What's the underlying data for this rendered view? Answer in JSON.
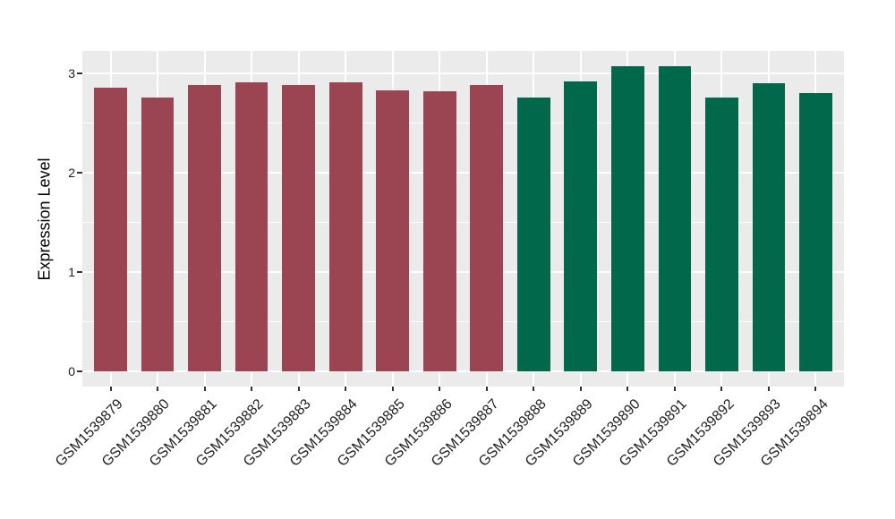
{
  "chart_data": {
    "type": "bar",
    "title": "",
    "xlabel": "",
    "ylabel": "Expression Level",
    "categories": [
      "GSM1539879",
      "GSM1539880",
      "GSM1539881",
      "GSM1539882",
      "GSM1539883",
      "GSM1539884",
      "GSM1539885",
      "GSM1539886",
      "GSM1539887",
      "GSM1539888",
      "GSM1539889",
      "GSM1539890",
      "GSM1539891",
      "GSM1539892",
      "GSM1539893",
      "GSM1539894"
    ],
    "values": [
      2.85,
      2.75,
      2.88,
      2.91,
      2.88,
      2.91,
      2.83,
      2.82,
      2.88,
      2.75,
      2.92,
      3.07,
      3.07,
      2.75,
      2.9,
      2.8
    ],
    "bar_colors": [
      "#9B4452",
      "#9B4452",
      "#9B4452",
      "#9B4452",
      "#9B4452",
      "#9B4452",
      "#9B4452",
      "#9B4452",
      "#9B4452",
      "#02684B",
      "#02684B",
      "#02684B",
      "#02684B",
      "#02684B",
      "#02684B",
      "#02684B"
    ],
    "group_colors": {
      "first_group": "#9B4452",
      "second_group": "#02684B"
    },
    "yticks": [
      0,
      1,
      2,
      3
    ],
    "yticks_minor": [
      0.5,
      1.5,
      2.5
    ],
    "ylim": [
      0,
      3.22
    ],
    "grid": "on",
    "legend": "none",
    "panel_background": "#EBEBEB",
    "gridline_color": "#FFFFFF",
    "tick_color": "#333333",
    "axis_text_color": "#1F1F1F"
  }
}
